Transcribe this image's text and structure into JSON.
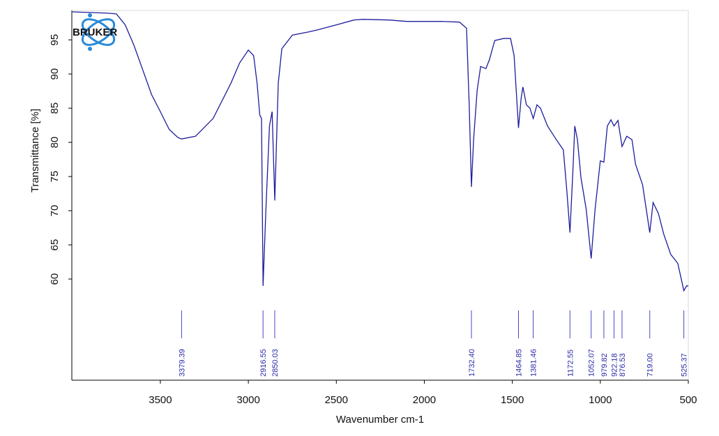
{
  "chart_data": {
    "type": "line",
    "logo": "BRUKER",
    "xlabel": "Wavenumber cm-1",
    "ylabel": "Transmittance [%]",
    "xlim": [
      4003,
      500
    ],
    "ylim": [
      45.2,
      99.3
    ],
    "xticks": [
      3500,
      3000,
      2500,
      2000,
      1500,
      1000,
      500
    ],
    "yticks": [
      60,
      65,
      70,
      75,
      80,
      85,
      90,
      95
    ],
    "series": [
      {
        "color": "#1c1c9c",
        "x": [
          4000,
          3900,
          3800,
          3750,
          3700,
          3650,
          3600,
          3550,
          3500,
          3450,
          3400,
          3379,
          3300,
          3200,
          3100,
          3050,
          3000,
          2970,
          2950,
          2935,
          2925,
          2916.55,
          2900,
          2880,
          2865,
          2850,
          2830,
          2810,
          2750,
          2650,
          2600,
          2500,
          2400,
          2350,
          2200,
          2100,
          2000,
          1900,
          1800,
          1760,
          1745,
          1732.4,
          1720,
          1700,
          1680,
          1650,
          1630,
          1600,
          1550,
          1510,
          1490,
          1464.85,
          1450,
          1440,
          1420,
          1400,
          1381.46,
          1360,
          1340,
          1300,
          1250,
          1210,
          1190,
          1172.55,
          1155,
          1145,
          1130,
          1110,
          1080,
          1052.07,
          1030,
          1000,
          979.82,
          960,
          940,
          922.18,
          900,
          876.53,
          850,
          820,
          800,
          760,
          719,
          700,
          670,
          640,
          600,
          560,
          525.37,
          510,
          500
        ],
        "values": [
          99.1,
          99.0,
          98.9,
          98.8,
          97.2,
          94.2,
          90.6,
          87.0,
          84.5,
          81.9,
          80.7,
          80.5,
          80.9,
          83.5,
          88.6,
          91.6,
          93.5,
          92.7,
          88.6,
          84.0,
          83.5,
          59.0,
          70.2,
          82.4,
          84.5,
          71.5,
          88.6,
          93.7,
          95.7,
          96.2,
          96.5,
          97.2,
          97.9,
          98.0,
          97.9,
          97.7,
          97.7,
          97.7,
          97.6,
          96.7,
          85.5,
          73.5,
          80.4,
          87.6,
          91.1,
          90.8,
          92.1,
          94.9,
          95.2,
          95.2,
          92.7,
          82.1,
          86.5,
          88.1,
          85.5,
          85.0,
          83.5,
          85.5,
          85.0,
          82.4,
          80.4,
          78.9,
          72.8,
          66.8,
          76.3,
          82.4,
          80.4,
          74.8,
          70.2,
          63.0,
          70.2,
          77.3,
          77.1,
          82.4,
          83.3,
          82.4,
          83.2,
          79.4,
          80.9,
          80.4,
          76.8,
          73.8,
          66.8,
          71.2,
          69.6,
          66.6,
          63.6,
          62.3,
          58.3,
          59.0,
          59.0
        ]
      }
    ],
    "peaks": {
      "color": "#4646c8",
      "values": [
        3379.39,
        2916.55,
        2850.03,
        1732.4,
        1464.85,
        1381.46,
        1172.55,
        1052.07,
        979.82,
        922.18,
        876.53,
        719,
        525.37
      ],
      "value_labels": [
        "3379.39",
        "2916.55",
        "2850.03",
        "1732.40",
        "1464.85",
        "1381.46",
        "1172.55",
        "1052.07",
        "979.82",
        "922.18",
        "876.53",
        "719.00",
        "525.37"
      ]
    }
  }
}
